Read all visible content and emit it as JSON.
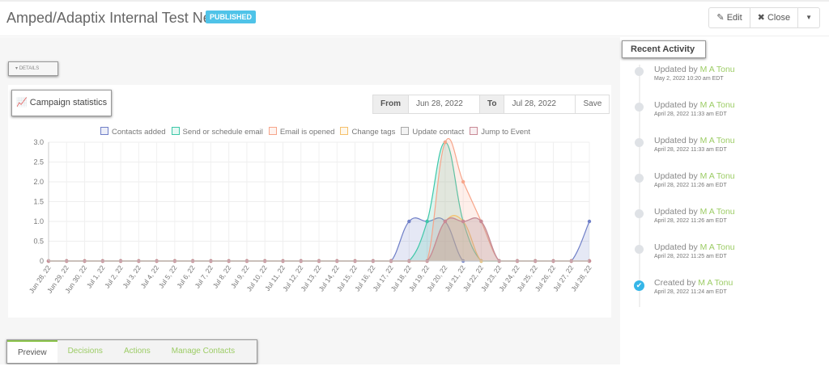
{
  "header": {
    "title": "Amped/Adaptix Internal Test New",
    "status": "PUBLISHED",
    "edit_label": "Edit",
    "close_label": "Close",
    "dropdown_icon": "caret-down-icon"
  },
  "details_label": "DETAILS",
  "stats": {
    "title": "Campaign statistics",
    "from_label": "From",
    "from_value": "Jun 28, 2022",
    "to_label": "To",
    "to_value": "Jul 28, 2022",
    "save_label": "Save"
  },
  "chart_data": {
    "type": "area",
    "categories": [
      "Jun 28, 22",
      "Jun 29, 22",
      "Jun 30, 22",
      "Jul 1, 22",
      "Jul 2, 22",
      "Jul 3, 22",
      "Jul 4, 22",
      "Jul 5, 22",
      "Jul 6, 22",
      "Jul 7, 22",
      "Jul 8, 22",
      "Jul 9, 22",
      "Jul 10, 22",
      "Jul 11, 22",
      "Jul 12, 22",
      "Jul 13, 22",
      "Jul 14, 22",
      "Jul 15, 22",
      "Jul 16, 22",
      "Jul 17, 22",
      "Jul 18, 22",
      "Jul 19, 22",
      "Jul 20, 22",
      "Jul 21, 22",
      "Jul 22, 22",
      "Jul 23, 22",
      "Jul 24, 22",
      "Jul 25, 22",
      "Jul 26, 22",
      "Jul 27, 22",
      "Jul 28, 22"
    ],
    "ylim": [
      0,
      3
    ],
    "yticks": [
      "0",
      "0.5",
      "1.0",
      "1.5",
      "2.0",
      "2.5",
      "3.0"
    ],
    "grid": true,
    "legend_position": "top",
    "series": [
      {
        "name": "Contacts added",
        "color": "#6f7fc7",
        "values": [
          0,
          0,
          0,
          0,
          0,
          0,
          0,
          0,
          0,
          0,
          0,
          0,
          0,
          0,
          0,
          0,
          0,
          0,
          0,
          0,
          1,
          1,
          1,
          0,
          0,
          0,
          0,
          0,
          0,
          0,
          1
        ]
      },
      {
        "name": "Send or schedule email",
        "color": "#3dc7a8",
        "values": [
          0,
          0,
          0,
          0,
          0,
          0,
          0,
          0,
          0,
          0,
          0,
          0,
          0,
          0,
          0,
          0,
          0,
          0,
          0,
          0,
          0,
          1,
          3,
          1,
          0,
          0,
          0,
          0,
          0,
          0,
          0
        ]
      },
      {
        "name": "Email is opened",
        "color": "#f7a58a",
        "values": [
          0,
          0,
          0,
          0,
          0,
          0,
          0,
          0,
          0,
          0,
          0,
          0,
          0,
          0,
          0,
          0,
          0,
          0,
          0,
          0,
          0,
          0,
          3,
          2,
          1,
          0,
          0,
          0,
          0,
          0,
          0
        ]
      },
      {
        "name": "Change tags",
        "color": "#f5c06b",
        "values": [
          0,
          0,
          0,
          0,
          0,
          0,
          0,
          0,
          0,
          0,
          0,
          0,
          0,
          0,
          0,
          0,
          0,
          0,
          0,
          0,
          0,
          0,
          1,
          1,
          0,
          0,
          0,
          0,
          0,
          0,
          0
        ]
      },
      {
        "name": "Update contact",
        "color": "#a8a8a8",
        "values": [
          0,
          0,
          0,
          0,
          0,
          0,
          0,
          0,
          0,
          0,
          0,
          0,
          0,
          0,
          0,
          0,
          0,
          0,
          0,
          0,
          0,
          0,
          1,
          1,
          1,
          0,
          0,
          0,
          0,
          0,
          0
        ]
      },
      {
        "name": "Jump to Event",
        "color": "#c98a96",
        "values": [
          0,
          0,
          0,
          0,
          0,
          0,
          0,
          0,
          0,
          0,
          0,
          0,
          0,
          0,
          0,
          0,
          0,
          0,
          0,
          0,
          0,
          0,
          1,
          1,
          1,
          0,
          0,
          0,
          0,
          0,
          0
        ]
      }
    ]
  },
  "tabs": [
    {
      "label": "Preview"
    },
    {
      "label": "Decisions"
    },
    {
      "label": "Actions"
    },
    {
      "label": "Manage Contacts"
    }
  ],
  "activity": {
    "title": "Recent Activity",
    "items": [
      {
        "action": "Updated by",
        "user": "M A Tonu",
        "time": "May 2, 2022 10:20 am EDT"
      },
      {
        "action": "Updated by",
        "user": "M A Tonu",
        "time": "April 28, 2022 11:33 am EDT"
      },
      {
        "action": "Updated by",
        "user": "M A Tonu",
        "time": "April 28, 2022 11:33 am EDT"
      },
      {
        "action": "Updated by",
        "user": "M A Tonu",
        "time": "April 28, 2022 11:26 am EDT"
      },
      {
        "action": "Updated by",
        "user": "M A Tonu",
        "time": "April 28, 2022 11:26 am EDT"
      },
      {
        "action": "Updated by",
        "user": "M A Tonu",
        "time": "April 28, 2022 11:25 am EDT"
      },
      {
        "action": "Created by",
        "user": "M A Tonu",
        "time": "April 28, 2022 11:24 am EDT"
      }
    ]
  }
}
